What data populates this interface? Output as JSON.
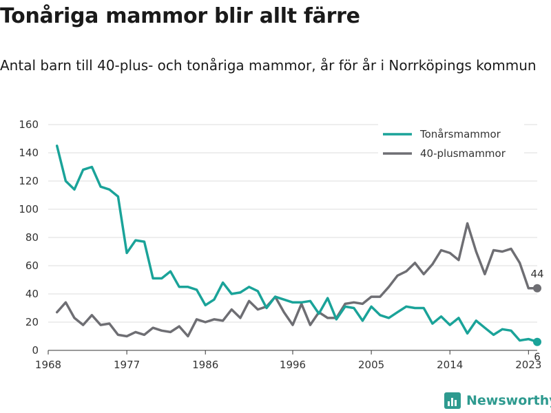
{
  "header": {
    "title": "Tonåriga mammor blir allt färre",
    "subtitle": "Antal barn till 40-plus- och tonåriga mammor, år för år i Norrköpings kommun"
  },
  "brand": {
    "name": "Newsworthy",
    "icon": "bar-chart-icon",
    "color": "#2e9a8f"
  },
  "chart_data": {
    "type": "line",
    "title": "Tonåriga mammor blir allt färre",
    "subtitle": "Antal barn till 40-plus- och tonåriga mammor, år för år i Norrköpings kommun",
    "xlabel": "",
    "ylabel": "",
    "xlim": [
      1968,
      2024
    ],
    "ylim": [
      0,
      160
    ],
    "x_ticks": [
      1968,
      1977,
      1986,
      1996,
      2005,
      2014,
      2023
    ],
    "y_ticks": [
      0,
      20,
      40,
      60,
      80,
      100,
      120,
      140,
      160
    ],
    "grid": "horizontal",
    "legend_position": "top-right",
    "x": [
      1969,
      1970,
      1971,
      1972,
      1973,
      1974,
      1975,
      1976,
      1977,
      1978,
      1979,
      1980,
      1981,
      1982,
      1983,
      1984,
      1985,
      1986,
      1987,
      1988,
      1989,
      1990,
      1991,
      1992,
      1993,
      1994,
      1995,
      1996,
      1997,
      1998,
      1999,
      2000,
      2001,
      2002,
      2003,
      2004,
      2005,
      2006,
      2007,
      2008,
      2009,
      2010,
      2011,
      2012,
      2013,
      2014,
      2015,
      2016,
      2017,
      2018,
      2019,
      2020,
      2021,
      2022,
      2023,
      2024
    ],
    "series": [
      {
        "name": "Tonårsmammor",
        "color": "#1aa399",
        "end_label": "6",
        "values": [
          145,
          120,
          114,
          128,
          130,
          116,
          114,
          109,
          69,
          78,
          77,
          51,
          51,
          56,
          45,
          45,
          43,
          32,
          36,
          48,
          40,
          41,
          45,
          42,
          30,
          38,
          36,
          34,
          34,
          35,
          26,
          37,
          22,
          31,
          30,
          21,
          31,
          25,
          23,
          27,
          31,
          30,
          30,
          19,
          24,
          18,
          23,
          12,
          21,
          16,
          11,
          15,
          14,
          7,
          8,
          6
        ]
      },
      {
        "name": "40-plusmammor",
        "color": "#6e6e73",
        "end_label": "44",
        "values": [
          27,
          34,
          23,
          18,
          25,
          18,
          19,
          11,
          10,
          13,
          11,
          16,
          14,
          13,
          17,
          10,
          22,
          20,
          22,
          21,
          29,
          23,
          35,
          29,
          31,
          38,
          27,
          18,
          33,
          18,
          27,
          23,
          23,
          33,
          34,
          33,
          38,
          38,
          45,
          53,
          56,
          62,
          54,
          61,
          71,
          69,
          64,
          90,
          70,
          54,
          71,
          70,
          72,
          62,
          44,
          44
        ]
      }
    ]
  }
}
